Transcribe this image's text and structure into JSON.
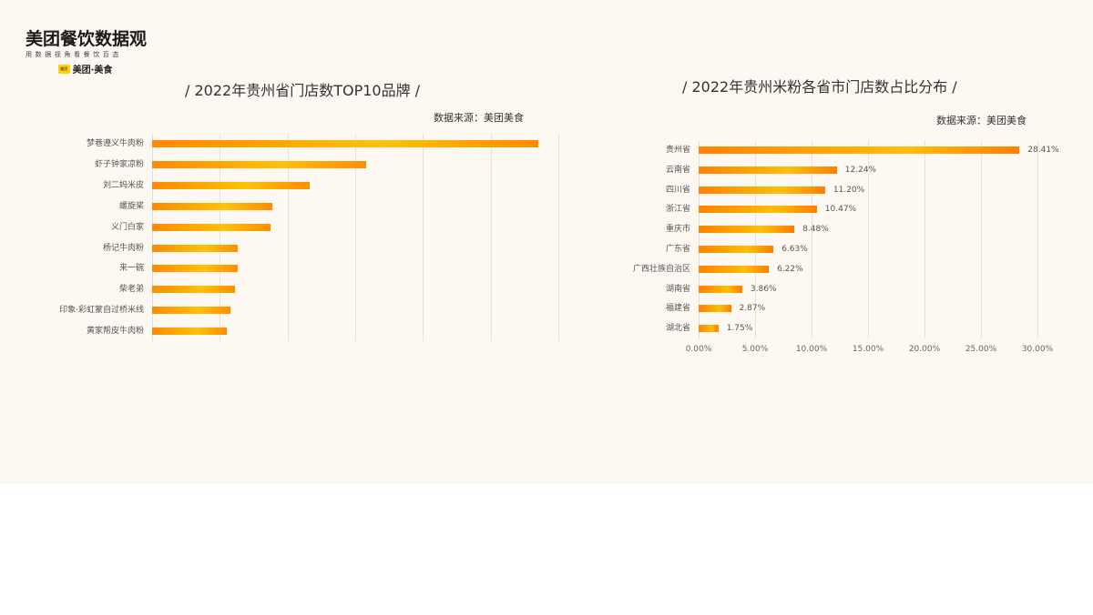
{
  "logo": {
    "title": "美团餐饮数据观",
    "subtitle": "用数据视角看餐饮百态",
    "badge": "美团",
    "brand": "美团·美食"
  },
  "charts": {
    "left": {
      "title": "/  2022年贵州省门店数TOP10品牌  /",
      "source": "数据来源：美团美食"
    },
    "right": {
      "title": "/ 2022年贵州米粉各省市门店数占比分布  /",
      "source": "数据来源：美团美食"
    }
  },
  "chart_data": [
    {
      "type": "bar",
      "orientation": "horizontal",
      "title": "2022年贵州省门店数TOP10品牌",
      "source": "数据来源：美团美食",
      "xlabel": "",
      "ylabel": "",
      "x_tick_labels_shown": false,
      "grid": true,
      "value_unit": "relative (gridline units, no numeric axis labels shown)",
      "xlim": [
        0,
        6
      ],
      "categories": [
        "梦巷遵义牛肉粉",
        "虾子钟家凉粉",
        "刘二妈米皮",
        "螺旋桨",
        "义门白家",
        "杨记牛肉粉",
        "来一碗",
        "柴老弟",
        "印象·彩虹蒙自过桥米线",
        "黄家帮皮牛肉粉"
      ],
      "values": [
        5.7,
        3.16,
        2.32,
        1.78,
        1.75,
        1.26,
        1.26,
        1.22,
        1.15,
        1.1
      ]
    },
    {
      "type": "bar",
      "orientation": "horizontal",
      "title": "2022年贵州米粉各省市门店数占比分布",
      "source": "数据来源：美团美食",
      "xlabel": "",
      "ylabel": "",
      "grid": true,
      "xlim": [
        0,
        30
      ],
      "x_ticks": [
        "0.00%",
        "5.00%",
        "10.00%",
        "15.00%",
        "20.00%",
        "25.00%",
        "30.00%"
      ],
      "categories": [
        "贵州省",
        "云南省",
        "四川省",
        "浙江省",
        "重庆市",
        "广东省",
        "广西壮族自治区",
        "湖南省",
        "福建省",
        "湖北省"
      ],
      "values": [
        28.41,
        12.24,
        11.2,
        10.47,
        8.48,
        6.63,
        6.22,
        3.86,
        2.87,
        1.75
      ],
      "value_labels": [
        "28.41%",
        "12.24%",
        "11.20%",
        "10.47%",
        "8.48%",
        "6.63%",
        "6.22%",
        "3.86%",
        "2.87%",
        "1.75%"
      ]
    }
  ],
  "colors": {
    "background": "#fdf8f2",
    "bar_dark": "#ff8a00",
    "bar_light": "#ffc20a",
    "grid": "#e6e1dc"
  }
}
